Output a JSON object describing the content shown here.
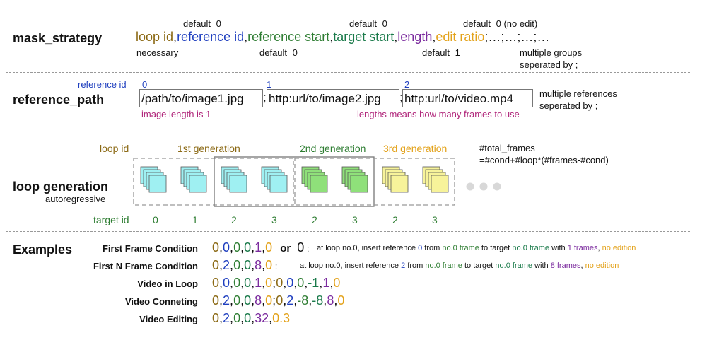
{
  "mask_strategy": {
    "title": "mask_strategy",
    "defaults_top": [
      "default=0",
      "default=0",
      "default=0 (no edit)"
    ],
    "defaults_bottom": [
      "necessary",
      "default=0",
      "default=1"
    ],
    "fields": [
      "loop id",
      "reference id",
      "reference start",
      "target start",
      "length",
      "edit ratio"
    ],
    "tail": ";…;…;…;…",
    "note_line1": "multiple groups",
    "note_line2": "seperated by ;"
  },
  "reference_path": {
    "title": "reference_path",
    "id_label": "reference id",
    "ids": [
      "0",
      "1",
      "2"
    ],
    "paths": [
      "/path/to/image1.jpg",
      "http:url/to/image2.jpg",
      "http:url/to/video.mp4"
    ],
    "note_image": "image length is 1",
    "note_length": "lengths means how many frames to use",
    "note_line1": "multiple references",
    "note_line2": "seperated by ;"
  },
  "loop_generation": {
    "title": "loop generation",
    "subtitle": "autoregressive",
    "loop_id_label": "loop id",
    "generations": [
      "1st generation",
      "2nd generation",
      "3rd generation"
    ],
    "formula_line1": "#total_frames",
    "formula_line2": "=#cond+#loop*(#frames-#cond)",
    "target_id_label": "target id",
    "target_ids": [
      "0",
      "1",
      "2",
      "3",
      "2",
      "3",
      "2",
      "3"
    ],
    "colors": {
      "cyan": "#9ff0f2",
      "green": "#8fe07a",
      "yellow": "#f7f39a",
      "dots": "#d8d8d8"
    }
  },
  "examples": {
    "title": "Examples",
    "items": [
      {
        "label": "First Frame Condition",
        "value_tokens": [
          "0",
          "0",
          "0",
          "0",
          "1",
          "0"
        ],
        "or": "or",
        "alt": "0",
        "desc": [
          {
            "t": "at loop no.0, insert reference ",
            "c": "black"
          },
          {
            "t": "0",
            "c": "ref"
          },
          {
            "t": " from ",
            "c": "black"
          },
          {
            "t": "no.0 frame",
            "c": "rs"
          },
          {
            "t": " to target ",
            "c": "black"
          },
          {
            "t": "no.0 frame",
            "c": "ts"
          },
          {
            "t": " with ",
            "c": "black"
          },
          {
            "t": "1 frames",
            "c": "len"
          },
          {
            "t": ", ",
            "c": "black"
          },
          {
            "t": "no edition",
            "c": "edit"
          }
        ]
      },
      {
        "label": "First N Frame Condition",
        "value_tokens": [
          "0",
          "2",
          "0",
          "0",
          "8",
          "0"
        ],
        "desc": [
          {
            "t": "at loop no.0, insert reference ",
            "c": "black"
          },
          {
            "t": "2",
            "c": "ref"
          },
          {
            "t": " from ",
            "c": "black"
          },
          {
            "t": "no.0 frame",
            "c": "rs"
          },
          {
            "t": " to target ",
            "c": "black"
          },
          {
            "t": "no.0 frame",
            "c": "ts"
          },
          {
            "t": " with ",
            "c": "black"
          },
          {
            "t": "8 frames",
            "c": "len"
          },
          {
            "t": ", ",
            "c": "black"
          },
          {
            "t": "no edition",
            "c": "edit"
          }
        ]
      },
      {
        "label": "Video in Loop",
        "value_text": "0,0,0,0,1,0;0,0,0,-1,1,0"
      },
      {
        "label": "Video Conneting",
        "value_text": "0,2,0,0,8,0;0,2,-8,-8,8,0"
      },
      {
        "label": "Video Editing",
        "value_text": "0,2,0,0,32,0.3"
      }
    ]
  }
}
